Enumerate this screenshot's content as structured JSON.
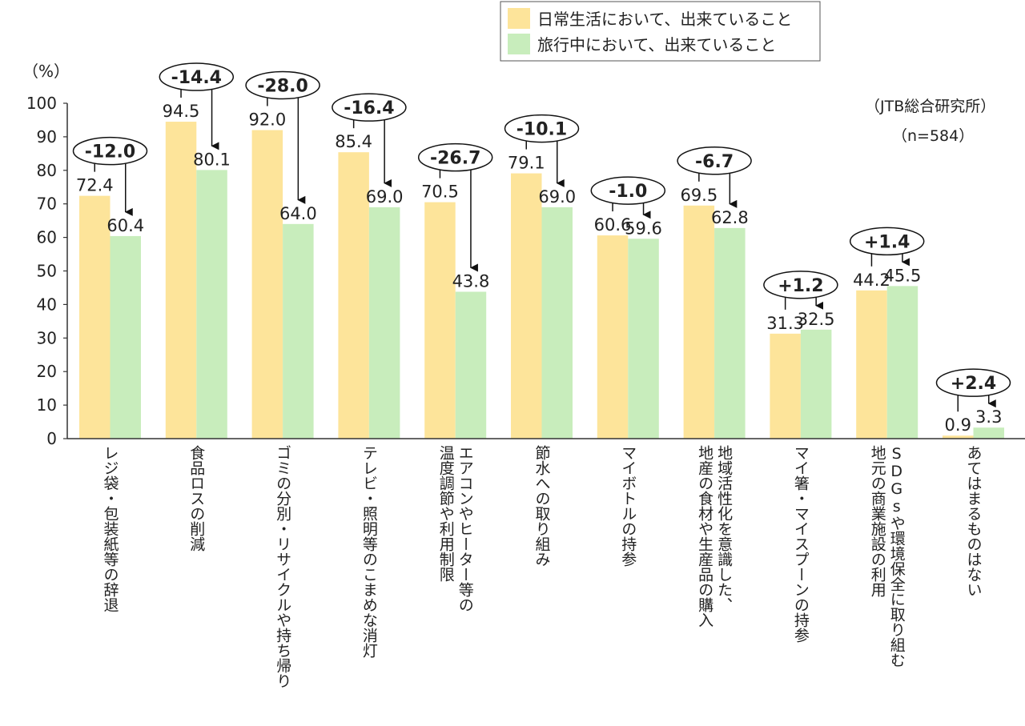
{
  "chart_data": {
    "type": "bar",
    "title": "",
    "ylabel": "（%）",
    "xlabel": "",
    "ylim": [
      0,
      100
    ],
    "yticks": [
      0,
      10,
      20,
      30,
      40,
      50,
      60,
      70,
      80,
      90,
      100
    ],
    "grid": false,
    "legend_position": "top-right",
    "source_note": "（JTB総合研究所）",
    "sample_note": "（n=584）",
    "categories": [
      "レジ袋・包装紙等の辞退",
      "食品ロスの削減",
      "ゴミの分別・リサイクルや持ち帰り",
      "テレビ・照明等のこまめな消灯",
      "エアコンやヒーター等の温度調節や利用制限",
      "節水への取り組み",
      "マイボトルの持参",
      "地域活性化を意識した、地産の食材や生産品の購入",
      "マイ箸・マイスプーンの持参",
      "SDGsや環境保全に取り組む地元の商業施設の利用",
      "あてはまるものはない"
    ],
    "category_lines": [
      [
        "レジ袋・包装紙等の辞退"
      ],
      [
        "食品ロスの削減"
      ],
      [
        "ゴミの分別・リサイクルや持ち帰り"
      ],
      [
        "テレビ・照明等のこまめな消灯"
      ],
      [
        "エアコンやヒーター等の",
        "温度調節や利用制限"
      ],
      [
        "節水への取り組み"
      ],
      [
        "マイボトルの持参"
      ],
      [
        "地域活性化を意識した、",
        "地産の食材や生産品の購入"
      ],
      [
        "マイ箸・マイスプーンの持参"
      ],
      [
        "SDGsや環境保全に取り組む",
        "地元の商業施設の利用"
      ],
      [
        "あてはまるものはない"
      ]
    ],
    "series": [
      {
        "name": "日常生活において、出来ていること",
        "color": "#FDE49A",
        "values": [
          72.4,
          94.5,
          92.0,
          85.4,
          70.5,
          79.1,
          60.6,
          69.5,
          31.3,
          44.2,
          0.9
        ],
        "labels": [
          "72.4",
          "94.5",
          "92.0",
          "85.4",
          "70.5",
          "79.1",
          "60.6",
          "69.5",
          "31.3",
          "44.2",
          "0.9"
        ]
      },
      {
        "name": "旅行中において、出来ていること",
        "color": "#C8EDBC",
        "values": [
          60.4,
          80.1,
          64.0,
          69.0,
          43.8,
          69.0,
          59.6,
          62.8,
          32.5,
          45.5,
          3.3
        ],
        "labels": [
          "60.4",
          "80.1",
          "64.0",
          "69.0",
          "43.8",
          "69.0",
          "59.6",
          "62.8",
          "32.5",
          "45.5",
          "3.3"
        ]
      }
    ],
    "differences": [
      "-12.0",
      "-14.4",
      "-28.0",
      "-16.4",
      "-26.7",
      "-10.1",
      "-1.0",
      "-6.7",
      "+1.2",
      "+1.4",
      "+2.4"
    ]
  }
}
